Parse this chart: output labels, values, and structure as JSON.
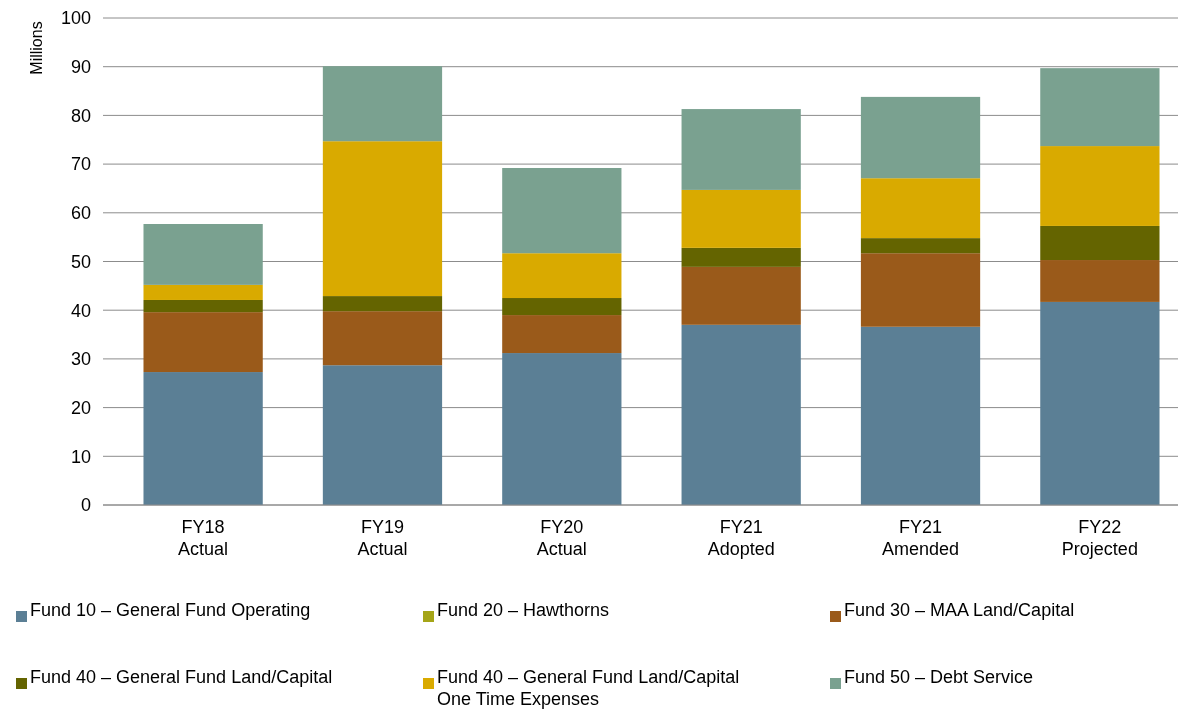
{
  "chart_data": {
    "type": "bar",
    "stacked": true,
    "ylabel": "Millions",
    "categories": [
      "FY18\nActual",
      "FY19\nActual",
      "FY20\nActual",
      "FY21\nAdopted",
      "FY21\nAmended",
      "FY22\nProjected"
    ],
    "ylim": [
      0,
      100
    ],
    "yticks": [
      0,
      10,
      20,
      30,
      40,
      50,
      60,
      70,
      80,
      90,
      100
    ],
    "grid": "y",
    "legend": "bottom",
    "series": [
      {
        "name": "Fund 10 – General Fund Operating",
        "color": "#5b7f95",
        "values": [
          27.3,
          28.7,
          31.2,
          37.0,
          36.6,
          41.7
        ]
      },
      {
        "name": "Fund 20 – Hawthorns",
        "color": "#a5a518",
        "values": [
          0,
          0,
          0,
          0,
          0,
          0
        ]
      },
      {
        "name": "Fund 30 – MAA Land/Capital",
        "color": "#9a5a1a",
        "values": [
          12.3,
          11.1,
          7.8,
          11.9,
          15.1,
          8.6
        ]
      },
      {
        "name": "Fund 40 – General Fund Land/Capital",
        "color": "#646400",
        "values": [
          2.5,
          3.1,
          3.5,
          3.9,
          3.1,
          7.0
        ]
      },
      {
        "name": "Fund 40 – General Fund Land/Capital\nOne Time Expenses",
        "color": "#d9aa00",
        "values": [
          3.1,
          31.8,
          9.2,
          11.9,
          12.3,
          16.4
        ]
      },
      {
        "name": "Fund 50 – Debt Service",
        "color": "#7aa190",
        "values": [
          12.5,
          15.4,
          17.5,
          16.6,
          16.7,
          16.0
        ]
      }
    ]
  }
}
